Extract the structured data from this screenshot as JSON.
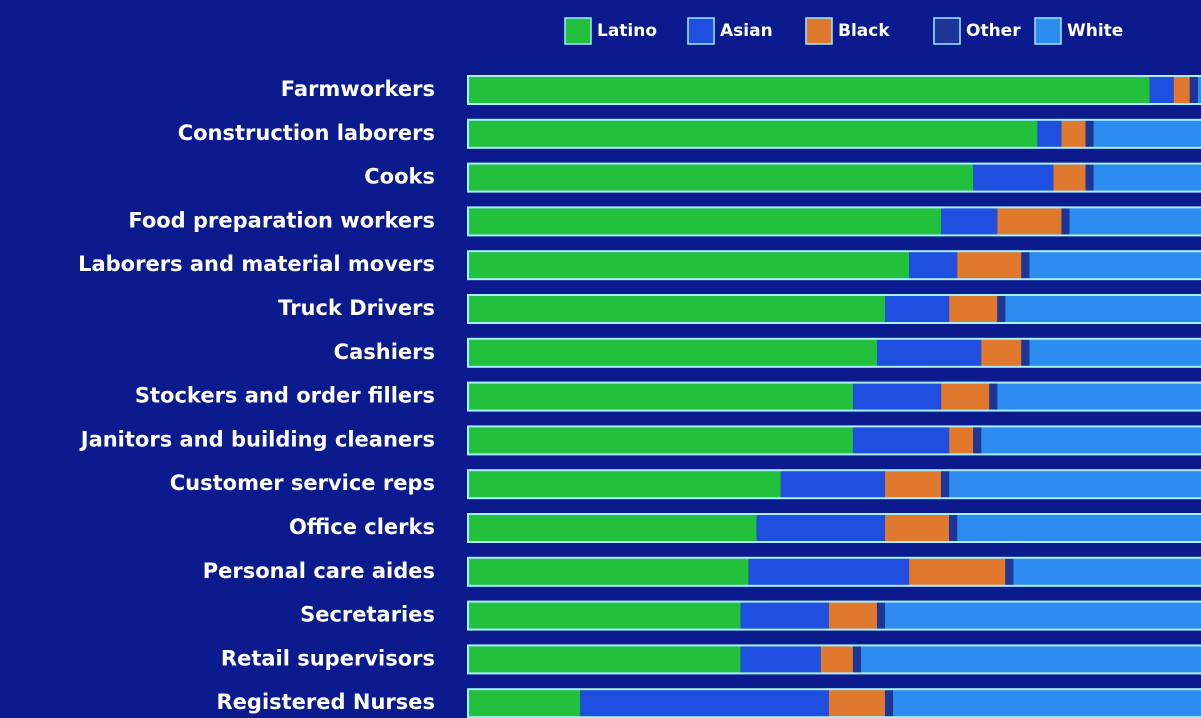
{
  "chart_data": {
    "type": "bar",
    "orientation": "horizontal",
    "stacked": true,
    "categories": [
      "Farmworkers",
      "Construction laborers",
      "Cooks",
      "Food preparation workers",
      "Laborers and material movers",
      "Truck Drivers",
      "Cashiers",
      "Stockers and order fillers",
      "Janitors and building cleaners",
      "Customer service reps",
      "Office clerks",
      "Personal care aides",
      "Secretaries",
      "Retail supervisors",
      "Registered Nurses"
    ],
    "series": [
      {
        "name": "Latino",
        "color": "#22c03c",
        "values": [
          85,
          71,
          63,
          59,
          55,
          52,
          51,
          48,
          48,
          39,
          36,
          35,
          34,
          34,
          14
        ]
      },
      {
        "name": "Asian",
        "color": "#1f4fe0",
        "values": [
          3,
          3,
          10,
          7,
          6,
          8,
          13,
          11,
          12,
          13,
          16,
          20,
          11,
          10,
          31
        ]
      },
      {
        "name": "Black",
        "color": "#e0782e",
        "values": [
          2,
          3,
          4,
          8,
          8,
          6,
          5,
          6,
          3,
          7,
          8,
          12,
          6,
          4,
          7
        ]
      },
      {
        "name": "Other",
        "color": "#1c3596",
        "values": [
          1,
          1,
          1,
          1,
          1,
          1,
          1,
          1,
          1,
          1,
          1,
          1,
          1,
          1,
          1
        ]
      },
      {
        "name": "White",
        "color": "#2c8cf0",
        "values": [
          9,
          22,
          22,
          25,
          30,
          33,
          30,
          34,
          36,
          40,
          39,
          32,
          48,
          51,
          47
        ]
      }
    ],
    "xlim": [
      0,
      100
    ],
    "legend": "top"
  }
}
